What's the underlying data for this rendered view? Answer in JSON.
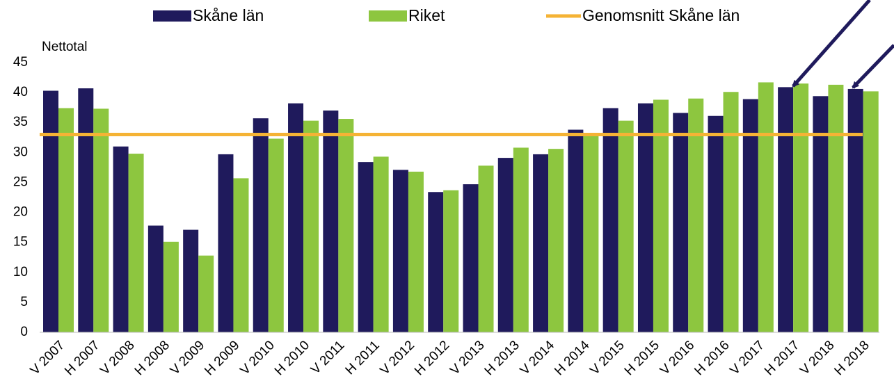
{
  "chart_data": {
    "type": "bar",
    "y_label": "Nettotal",
    "categories": [
      "V 2007",
      "H 2007",
      "V 2008",
      "H 2008",
      "V 2009",
      "H 2009",
      "V 2010",
      "H 2010",
      "V 2011",
      "H 2011",
      "V 2012",
      "H 2012",
      "V 2013",
      "H 2013",
      "V 2014",
      "H 2014",
      "V 2015",
      "H 2015",
      "V 2016",
      "H 2016",
      "V 2017",
      "H 2017",
      "V 2018",
      "H 2018"
    ],
    "series": [
      {
        "name": "Skåne län",
        "color": "#1f1a5c",
        "values": [
          40.3,
          40.7,
          31.0,
          17.8,
          17.1,
          29.7,
          35.7,
          38.2,
          37.0,
          28.4,
          27.1,
          23.4,
          24.7,
          29.1,
          29.7,
          33.8,
          37.4,
          38.2,
          36.6,
          36.1,
          38.9,
          40.9,
          39.4,
          40.6
        ]
      },
      {
        "name": "Riket",
        "color": "#8dc63f",
        "values": [
          37.4,
          37.3,
          29.8,
          15.1,
          12.8,
          25.7,
          32.3,
          35.3,
          35.6,
          29.3,
          26.8,
          23.7,
          27.8,
          30.8,
          30.6,
          33.2,
          35.3,
          38.8,
          39.0,
          40.1,
          41.7,
          41.5,
          41.3,
          40.2
        ]
      }
    ],
    "average": {
      "name": "Genomsnitt Skåne län",
      "color": "#f5b335",
      "value": 33.0
    },
    "ylim": [
      0,
      45
    ],
    "yticks": [
      0,
      5,
      10,
      15,
      20,
      25,
      30,
      35,
      40,
      45
    ],
    "grid": false
  }
}
